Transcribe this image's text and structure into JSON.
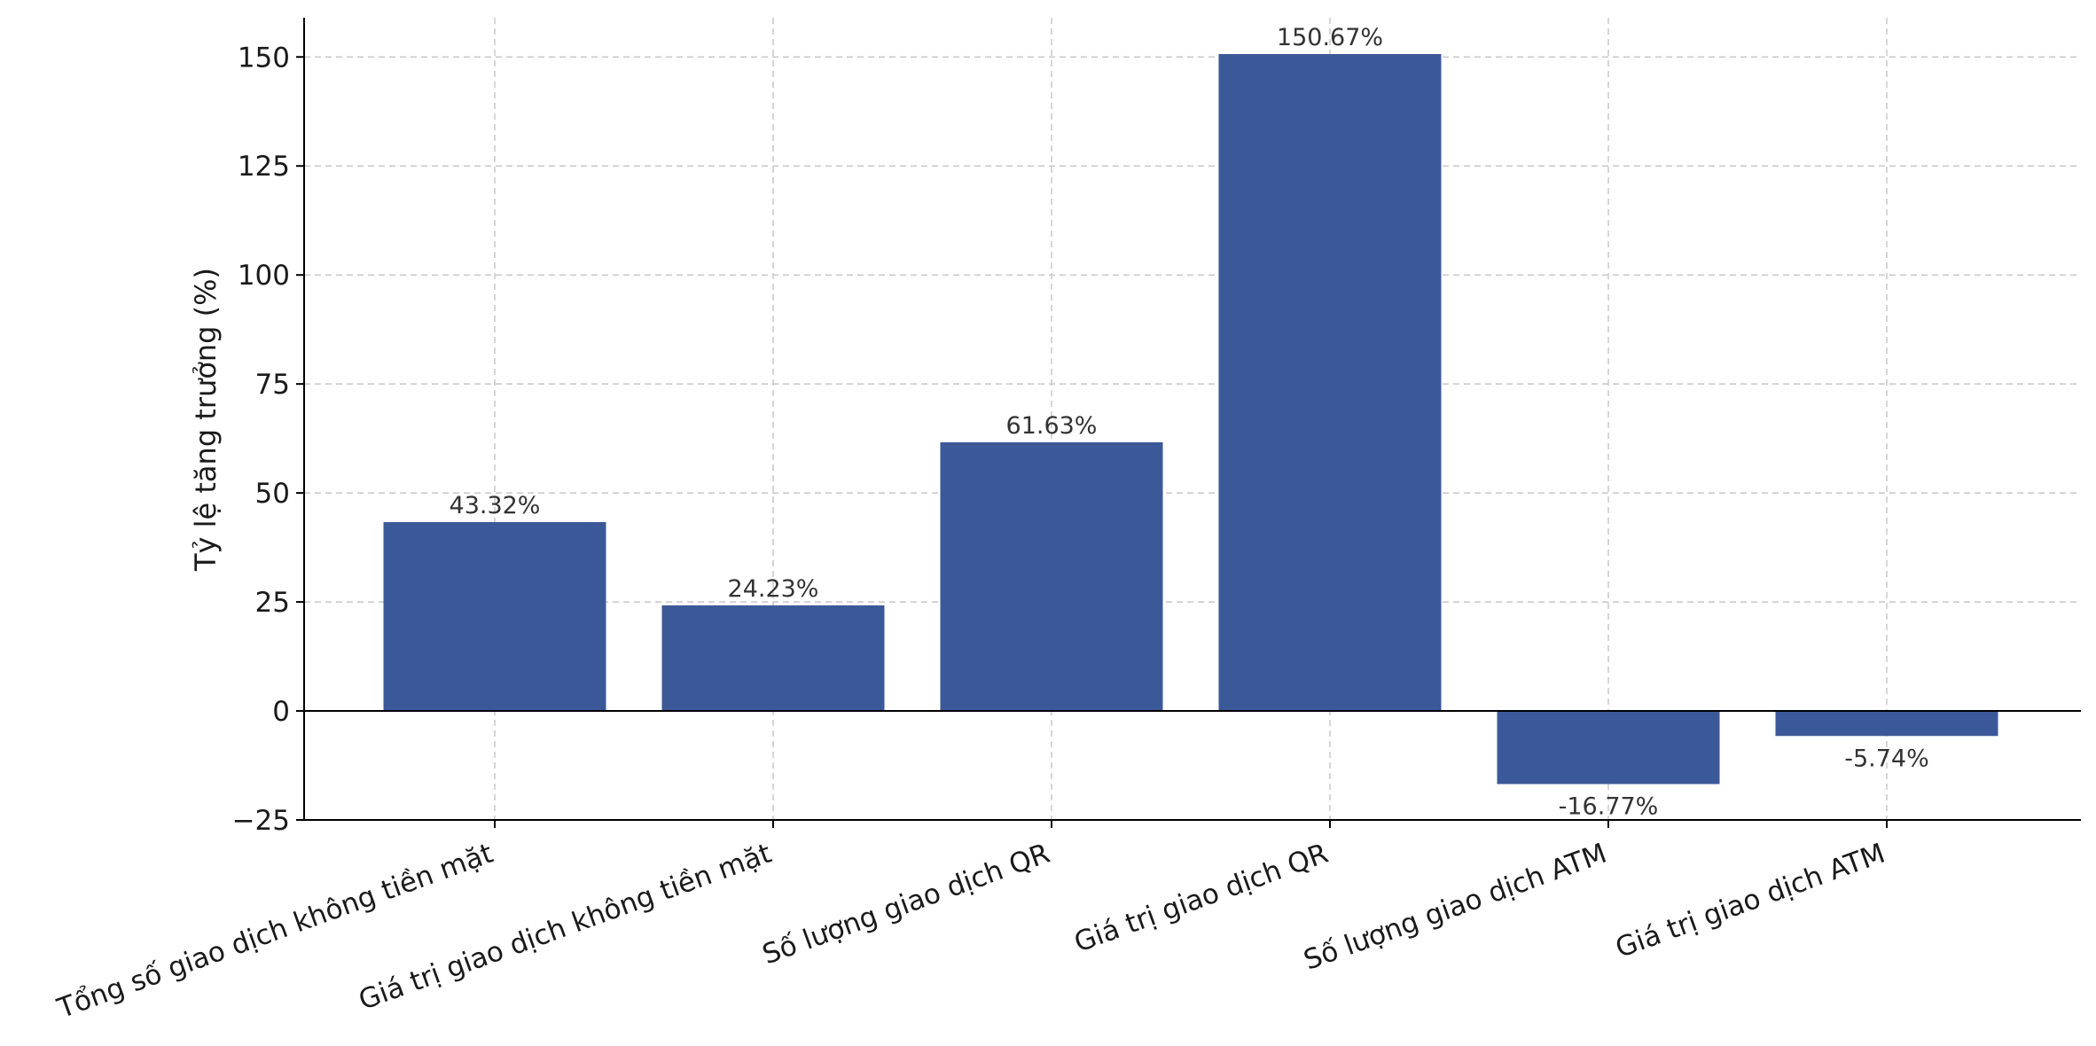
{
  "chart_data": {
    "type": "bar",
    "title": "",
    "xlabel": "",
    "ylabel": "Tỷ lệ tăng trưởng (%)",
    "ylim": [
      -25,
      159
    ],
    "yticks": [
      -25,
      0,
      25,
      50,
      75,
      100,
      125,
      150
    ],
    "grid": true,
    "bar_color": "#3b5998",
    "categories": [
      "Tổng số giao dịch không tiền mặt",
      "Giá trị giao dịch không tiền mặt",
      "Số lượng giao dịch QR",
      "Giá trị giao dịch QR",
      "Số lượng giao dịch ATM",
      "Giá trị giao dịch ATM"
    ],
    "values": [
      43.32,
      24.23,
      61.63,
      150.67,
      -16.77,
      -5.74
    ],
    "value_labels": [
      "43.32%",
      "24.23%",
      "61.63%",
      "150.67%",
      "-16.77%",
      "-5.74%"
    ]
  }
}
